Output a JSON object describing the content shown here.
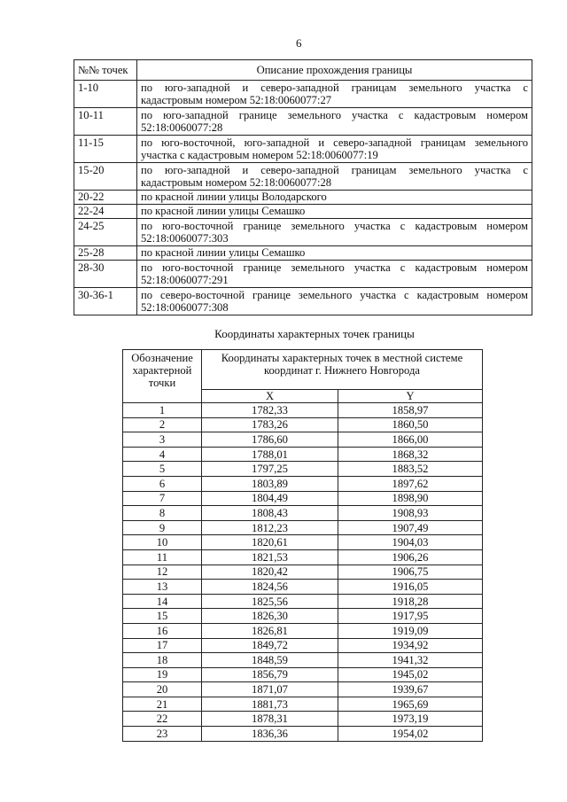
{
  "page_number": "6",
  "boundary_table": {
    "headers": [
      "№№ точек",
      "Описание прохождения границы"
    ],
    "rows": [
      {
        "points": "1-10",
        "line1": "по юго-западной и северо-западной границам земельного участка с",
        "line2": "кадастровым номером 52:18:0060077:27"
      },
      {
        "points": "10-11",
        "line1": "по юго-западной границе земельного участка с кадастровым номером",
        "line2": "52:18:0060077:28"
      },
      {
        "points": "11-15",
        "line1": "по юго-восточной, юго-западной и северо-западной границам земельного",
        "line2": "участка с кадастровым номером 52:18:0060077:19"
      },
      {
        "points": "15-20",
        "line1": "по юго-западной и северо-западной границам земельного участка с",
        "line2": "кадастровым номером 52:18:0060077:28"
      },
      {
        "points": "20-22",
        "line1": "по красной линии улицы Володарского"
      },
      {
        "points": "22-24",
        "line1": "по красной линии улицы Семашко"
      },
      {
        "points": "24-25",
        "line1": "по юго-восточной границе земельного участка с кадастровым номером",
        "line2": "52:18:0060077:303"
      },
      {
        "points": "25-28",
        "line1": "по красной линии улицы Семашко"
      },
      {
        "points": "28-30",
        "line1": "по юго-восточной границе земельного участка с кадастровым номером",
        "line2": "52:18:0060077:291"
      },
      {
        "points": "30-36-1",
        "line1": "по северо-восточной границе земельного участка с кадастровым номером",
        "line2": "52:18:0060077:308"
      }
    ]
  },
  "coords_title": "Координаты характерных точек границы",
  "coords_table": {
    "header_point": "Обозначение характерной точки",
    "header_coords": "Координаты характерных точек в местной системе координат г. Нижнего Новгорода",
    "header_x": "X",
    "header_y": "Y",
    "rows": [
      [
        "1",
        "1782,33",
        "1858,97"
      ],
      [
        "2",
        "1783,26",
        "1860,50"
      ],
      [
        "3",
        "1786,60",
        "1866,00"
      ],
      [
        "4",
        "1788,01",
        "1868,32"
      ],
      [
        "5",
        "1797,25",
        "1883,52"
      ],
      [
        "6",
        "1803,89",
        "1897,62"
      ],
      [
        "7",
        "1804,49",
        "1898,90"
      ],
      [
        "8",
        "1808,43",
        "1908,93"
      ],
      [
        "9",
        "1812,23",
        "1907,49"
      ],
      [
        "10",
        "1820,61",
        "1904,03"
      ],
      [
        "11",
        "1821,53",
        "1906,26"
      ],
      [
        "12",
        "1820,42",
        "1906,75"
      ],
      [
        "13",
        "1824,56",
        "1916,05"
      ],
      [
        "14",
        "1825,56",
        "1918,28"
      ],
      [
        "15",
        "1826,30",
        "1917,95"
      ],
      [
        "16",
        "1826,81",
        "1919,09"
      ],
      [
        "17",
        "1849,72",
        "1934,92"
      ],
      [
        "18",
        "1848,59",
        "1941,32"
      ],
      [
        "19",
        "1856,79",
        "1945,02"
      ],
      [
        "20",
        "1871,07",
        "1939,67"
      ],
      [
        "21",
        "1881,73",
        "1965,69"
      ],
      [
        "22",
        "1878,31",
        "1973,19"
      ],
      [
        "23",
        "1836,36",
        "1954,02"
      ]
    ]
  }
}
